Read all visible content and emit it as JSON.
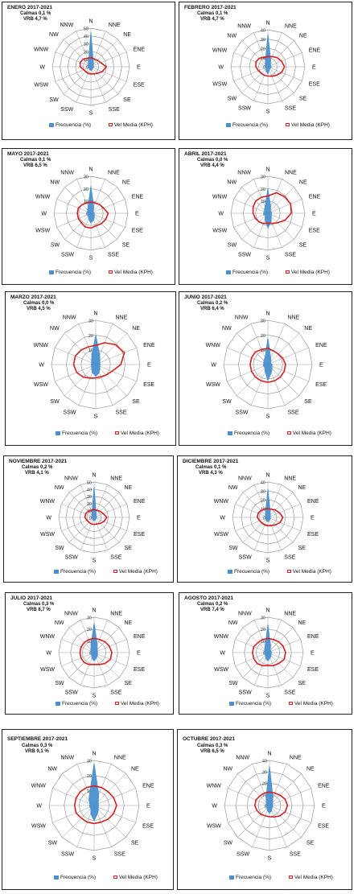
{
  "legend": {
    "freq": "Frecuencia (%)",
    "vel": "Vel Media (KPH)"
  },
  "directions": [
    "N",
    "NNE",
    "NE",
    "ENE",
    "E",
    "ESE",
    "SE",
    "SSE",
    "S",
    "SSW",
    "SW",
    "WSW",
    "W",
    "WNW",
    "NW",
    "NNW"
  ],
  "colors": {
    "freq": "#4a90d0",
    "vel": "#d42020",
    "grid": "#9a9a9a"
  },
  "chart_data": [
    {
      "type": "radar",
      "title": "ENERO 2017-2021",
      "calmas": "Calmas 0,1 %",
      "vrb": "VRB  4,7 %",
      "rmax": 50,
      "ticks": [
        0,
        10,
        20,
        30,
        40,
        50
      ],
      "series": [
        {
          "name": "Frecuencia (%)",
          "values": [
            45,
            8,
            5,
            3,
            4,
            3,
            3,
            4,
            5,
            4,
            3,
            3,
            4,
            4,
            5,
            8
          ]
        },
        {
          "name": "Vel Media (KPH)",
          "values": [
            12,
            11,
            12,
            14,
            20,
            16,
            12,
            10,
            9,
            9,
            9,
            10,
            14,
            15,
            14,
            12
          ]
        }
      ]
    },
    {
      "type": "radar",
      "title": "FEBRERO 2017-2021",
      "calmas": "Calmas 0,1 %",
      "vrb": "VRB  4,7 %",
      "rmax": 40,
      "ticks": [
        0,
        10,
        20,
        30,
        40
      ],
      "series": [
        {
          "name": "Frecuencia (%)",
          "values": [
            35,
            8,
            4,
            3,
            4,
            3,
            3,
            4,
            8,
            5,
            3,
            2,
            3,
            3,
            4,
            7
          ]
        },
        {
          "name": "Vel Media (KPH)",
          "values": [
            11,
            12,
            14,
            16,
            18,
            16,
            13,
            11,
            10,
            10,
            10,
            11,
            13,
            14,
            13,
            11
          ]
        }
      ]
    },
    {
      "type": "radar",
      "title": "MAYO 2017-2021",
      "calmas": "Calmas 0,1 %",
      "vrb": "VRB 6,5 %",
      "rmax": 30,
      "ticks": [
        0,
        10,
        20,
        30
      ],
      "series": [
        {
          "name": "Frecuencia (%)",
          "values": [
            22,
            6,
            3,
            2,
            3,
            3,
            4,
            6,
            8,
            5,
            3,
            3,
            3,
            3,
            4,
            6
          ]
        },
        {
          "name": "Vel Media (KPH)",
          "values": [
            9,
            9,
            10,
            11,
            14,
            13,
            12,
            11,
            12,
            12,
            11,
            11,
            11,
            11,
            10,
            9
          ]
        }
      ]
    },
    {
      "type": "radar",
      "title": "ABRIL 2017-2021",
      "calmas": "Calmas 0,0 %",
      "vrb": "VRB 4,4 %",
      "rmax": 30,
      "ticks": [
        0,
        10,
        20,
        30
      ],
      "series": [
        {
          "name": "Frecuencia (%)",
          "values": [
            20,
            6,
            3,
            3,
            3,
            3,
            4,
            7,
            12,
            6,
            3,
            3,
            3,
            3,
            4,
            6
          ]
        },
        {
          "name": "Vel Media (KPH)",
          "values": [
            14,
            18,
            19,
            20,
            19,
            15,
            11,
            9,
            8,
            9,
            10,
            11,
            12,
            13,
            14,
            14
          ]
        }
      ]
    },
    {
      "type": "radar",
      "title": "MARZO 2017-2021",
      "calmas": "Calmas 0,0 %",
      "vrb": "VRB  4,5 %",
      "rmax": 30,
      "ticks": [
        0,
        10,
        20,
        30
      ],
      "series": [
        {
          "name": "Frecuencia (%)",
          "values": [
            20,
            7,
            4,
            3,
            3,
            3,
            4,
            6,
            8,
            6,
            4,
            3,
            3,
            3,
            4,
            7
          ]
        },
        {
          "name": "Vel Media (KPH)",
          "values": [
            13,
            16,
            19,
            21,
            17,
            12,
            10,
            9,
            9,
            10,
            12,
            14,
            15,
            15,
            14,
            13
          ]
        }
      ]
    },
    {
      "type": "radar",
      "title": "JUNIO 2017-2021",
      "calmas": "Calmas 0,2 %",
      "vrb": "VRB  6,4 %",
      "rmax": 30,
      "ticks": [
        0,
        10,
        20,
        30
      ],
      "series": [
        {
          "name": "Frecuencia (%)",
          "values": [
            18,
            5,
            3,
            2,
            3,
            3,
            4,
            6,
            11,
            5,
            3,
            3,
            3,
            3,
            4,
            5
          ]
        },
        {
          "name": "Vel Media (KPH)",
          "values": [
            11,
            10,
            10,
            11,
            12,
            12,
            12,
            12,
            12,
            12,
            12,
            12,
            12,
            12,
            12,
            11
          ]
        }
      ]
    },
    {
      "type": "radar",
      "title": "NOVIEMBRE 2017-2021",
      "calmas": "Calmas 0,2 %",
      "vrb": "VRB  4,1 %",
      "rmax": 50,
      "ticks": [
        0,
        10,
        20,
        30,
        40,
        50
      ],
      "series": [
        {
          "name": "Frecuencia (%)",
          "values": [
            43,
            7,
            4,
            3,
            4,
            3,
            3,
            4,
            5,
            4,
            3,
            3,
            3,
            3,
            5,
            8
          ]
        },
        {
          "name": "Vel Media (KPH)",
          "values": [
            11,
            11,
            12,
            14,
            18,
            15,
            12,
            10,
            10,
            10,
            10,
            11,
            13,
            13,
            12,
            11
          ]
        }
      ]
    },
    {
      "type": "radar",
      "title": "DICIEMBRE 2017-2021",
      "calmas": "Calmas 0,1 %",
      "vrb": "VRB  4,3 %",
      "rmax": 40,
      "ticks": [
        0,
        10,
        20,
        30,
        40
      ],
      "series": [
        {
          "name": "Frecuencia (%)",
          "values": [
            32,
            7,
            4,
            3,
            3,
            3,
            3,
            4,
            5,
            4,
            3,
            3,
            3,
            3,
            4,
            7
          ]
        },
        {
          "name": "Vel Media (KPH)",
          "values": [
            10,
            10,
            12,
            14,
            17,
            15,
            12,
            10,
            9,
            9,
            9,
            10,
            12,
            12,
            11,
            10
          ]
        }
      ]
    },
    {
      "type": "radar",
      "title": "JULIO 2017-2021",
      "calmas": "Calmas 0,3 %",
      "vrb": "VRB  8,7 %",
      "rmax": 30,
      "ticks": [
        0,
        10,
        20,
        30
      ],
      "series": [
        {
          "name": "Frecuencia (%)",
          "values": [
            25,
            7,
            4,
            3,
            3,
            3,
            4,
            5,
            7,
            5,
            3,
            3,
            3,
            3,
            4,
            7
          ]
        },
        {
          "name": "Vel Media (KPH)",
          "values": [
            12,
            12,
            13,
            14,
            15,
            15,
            13,
            11,
            10,
            11,
            12,
            12,
            12,
            12,
            12,
            12
          ]
        }
      ]
    },
    {
      "type": "radar",
      "title": "AGOSTO 2017-2021",
      "calmas": "Calmas 0,2 %",
      "vrb": "VRB  7,4 %",
      "rmax": 30,
      "ticks": [
        0,
        10,
        20,
        30
      ],
      "series": [
        {
          "name": "Frecuencia (%)",
          "values": [
            24,
            6,
            3,
            3,
            3,
            3,
            4,
            5,
            7,
            5,
            3,
            3,
            3,
            3,
            4,
            6
          ]
        },
        {
          "name": "Vel Media (KPH)",
          "values": [
            12,
            12,
            13,
            14,
            15,
            15,
            13,
            12,
            11,
            12,
            13,
            13,
            13,
            13,
            12,
            12
          ]
        }
      ]
    },
    {
      "type": "radar",
      "title": "SEPTIEMBRE 2017-2021",
      "calmas": "Calmas 0,3 %",
      "vrb": "VRB  9,1 %",
      "rmax": 30,
      "ticks": [
        0,
        10,
        20,
        30
      ],
      "series": [
        {
          "name": "Frecuencia (%)",
          "values": [
            28,
            8,
            4,
            3,
            3,
            3,
            4,
            6,
            10,
            6,
            3,
            3,
            3,
            3,
            5,
            8
          ]
        },
        {
          "name": "Vel Media (KPH)",
          "values": [
            13,
            13,
            13,
            14,
            15,
            14,
            13,
            12,
            12,
            12,
            12,
            13,
            13,
            13,
            13,
            13
          ]
        }
      ]
    },
    {
      "type": "radar",
      "title": "OCTUBRE 2017-2021",
      "calmas": "Calmas 0,3 %",
      "vrb": "VRB  6,5 %",
      "rmax": 40,
      "ticks": [
        0,
        10,
        20,
        30,
        40
      ],
      "series": [
        {
          "name": "Frecuencia (%)",
          "values": [
            35,
            8,
            4,
            3,
            3,
            3,
            3,
            5,
            7,
            5,
            3,
            3,
            3,
            3,
            4,
            8
          ]
        },
        {
          "name": "Vel Media (KPH)",
          "values": [
            12,
            12,
            13,
            15,
            16,
            15,
            13,
            11,
            10,
            10,
            11,
            12,
            13,
            13,
            12,
            12
          ]
        }
      ]
    }
  ]
}
